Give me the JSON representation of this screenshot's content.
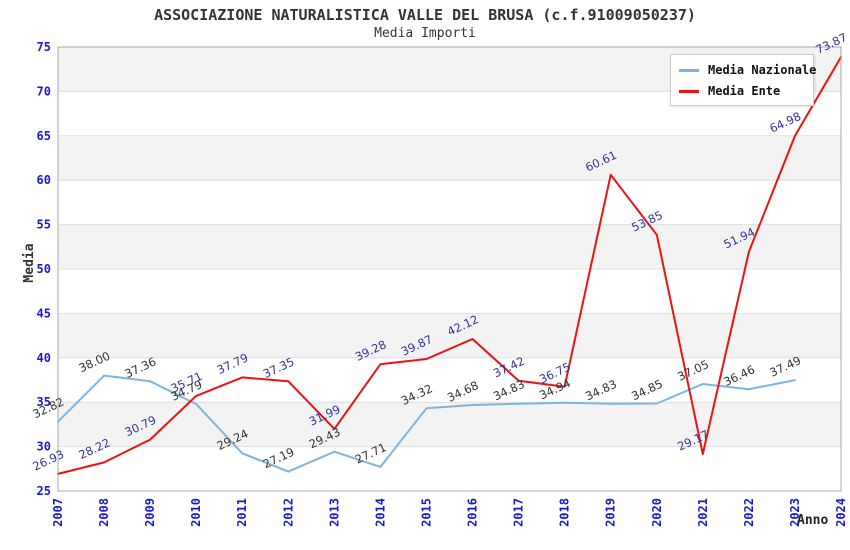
{
  "chart_data": {
    "type": "line",
    "title": "ASSOCIAZIONE NATURALISTICA VALLE DEL BRUSA (c.f.91009050237)",
    "subtitle": "Media Importi",
    "xlabel": "Anno",
    "ylabel": "Media",
    "x": [
      2007,
      2008,
      2009,
      2010,
      2011,
      2012,
      2013,
      2014,
      2015,
      2016,
      2017,
      2018,
      2019,
      2020,
      2021,
      2022,
      2023,
      2024
    ],
    "ylim": [
      25,
      75
    ],
    "ytick_step": 5,
    "grid": "horizontal-bands",
    "legend_position": "top-right",
    "series": [
      {
        "name": "Media Nazionale",
        "color": "#7db4e0",
        "label_color": "#333333",
        "values": [
          32.82,
          38.0,
          37.36,
          34.79,
          29.24,
          27.19,
          29.43,
          27.71,
          34.32,
          34.68,
          34.83,
          34.94,
          34.83,
          34.85,
          37.05,
          36.46,
          37.49,
          null
        ]
      },
      {
        "name": "Media Ente",
        "color": "#ec1212",
        "label_color": "#333399",
        "values": [
          26.93,
          28.22,
          30.79,
          35.71,
          37.79,
          37.35,
          31.99,
          39.28,
          39.87,
          42.12,
          37.42,
          36.75,
          60.61,
          53.85,
          29.17,
          51.94,
          64.98,
          73.87
        ]
      }
    ],
    "colors": {
      "tick_label": "#1a1acc",
      "band_gray": "#f3f3f3",
      "band_white": "#ffffff",
      "gridline": "#e0e0e0",
      "plot_border": "#aaaaaa"
    }
  }
}
